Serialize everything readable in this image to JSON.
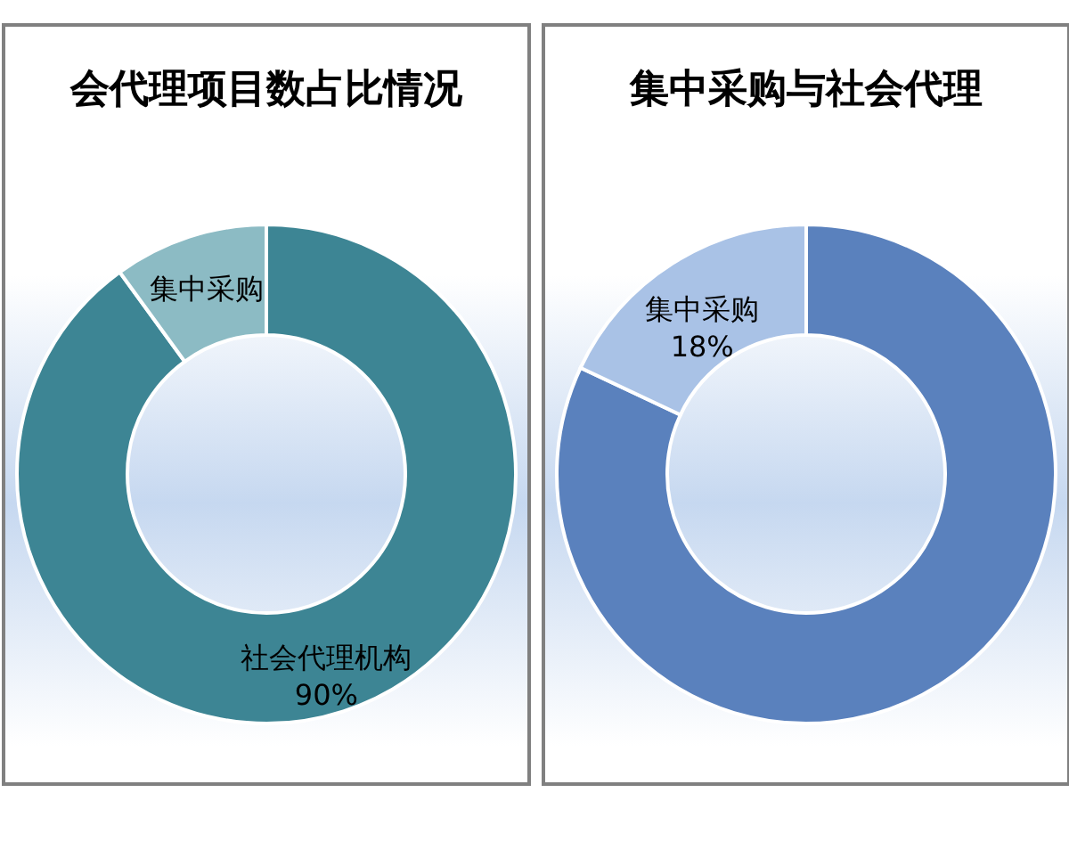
{
  "chart_data": [
    {
      "type": "donut",
      "title": "会代理项目数占比情况",
      "categories": [
        "社会代理机构",
        "集中采购"
      ],
      "values": [
        90,
        10
      ],
      "colors": [
        "#3d8594",
        "#8cbbc4"
      ],
      "value_labels": [
        "90%",
        null
      ]
    },
    {
      "type": "donut",
      "title": "集中采购与社会代理",
      "categories": [
        null,
        "集中采购"
      ],
      "values": [
        82,
        18
      ],
      "colors": [
        "#5a81bd",
        "#a9c2e6"
      ],
      "value_labels": [
        null,
        "18%"
      ]
    }
  ]
}
